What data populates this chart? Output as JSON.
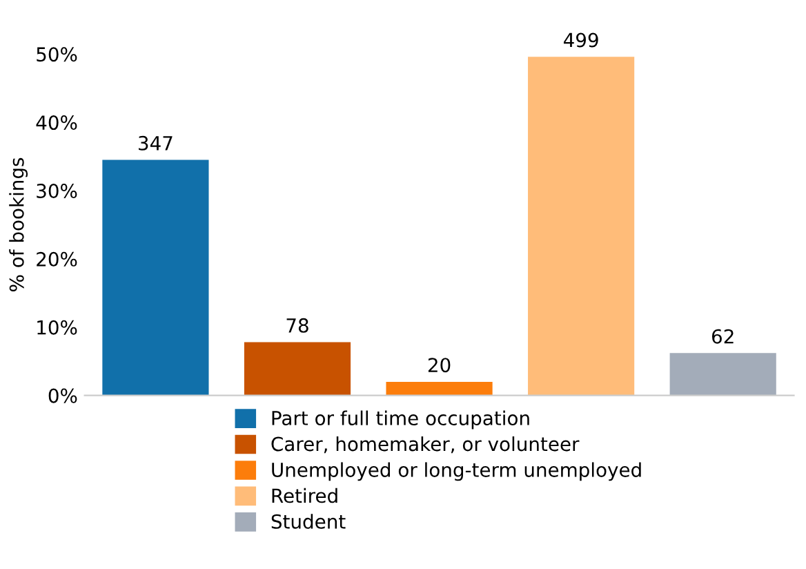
{
  "chart_data": {
    "type": "bar",
    "ylabel": "% of bookings",
    "categories": [
      null,
      null,
      null,
      null,
      null
    ],
    "series": [
      {
        "name": "Part or full time occupation",
        "color": "#1170aa",
        "values": [
          34.5,
          null,
          null,
          null,
          null
        ]
      },
      {
        "name": "Carer, homemaker, or volunteer",
        "color": "#c85200",
        "values": [
          null,
          7.8,
          null,
          null,
          null
        ]
      },
      {
        "name": "Unemployed or long-term unemployed",
        "color": "#fc7d0b",
        "values": [
          null,
          null,
          2.0,
          null,
          null
        ]
      },
      {
        "name": "Retired",
        "color": "#ffbc79",
        "values": [
          null,
          null,
          null,
          49.6,
          null
        ]
      },
      {
        "name": "Student",
        "color": "#a3acb9",
        "values": [
          null,
          null,
          null,
          null,
          6.2
        ]
      }
    ],
    "annotations": [
      {
        "text": "347",
        "y": 34.5
      },
      {
        "text": "78",
        "y": 7.8
      },
      {
        "text": "20",
        "y": 2.0
      },
      {
        "text": "499",
        "y": 49.6
      },
      {
        "text": "62",
        "y": 6.2
      }
    ],
    "ylim": [
      0,
      50
    ],
    "yticks": [
      {
        "value": 0,
        "label": "0%"
      },
      {
        "value": 10,
        "label": "10%"
      },
      {
        "value": 20,
        "label": "20%"
      },
      {
        "value": 30,
        "label": "30%"
      },
      {
        "value": 40,
        "label": "40%"
      },
      {
        "value": 50,
        "label": "50%"
      }
    ],
    "grid": false,
    "legend": "bottom"
  }
}
